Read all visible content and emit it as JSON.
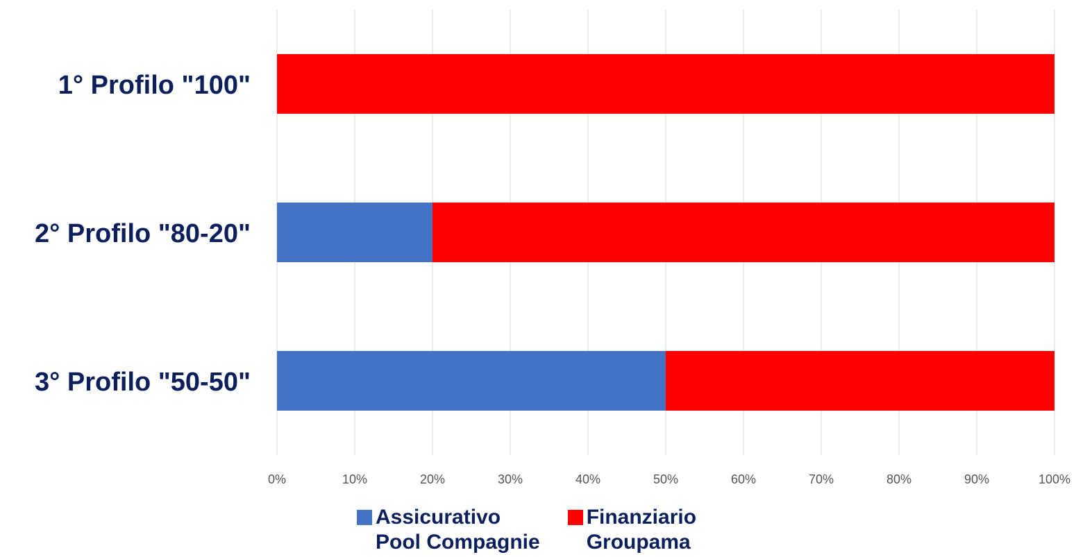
{
  "chart_data": {
    "type": "bar",
    "orientation": "horizontal",
    "stacked": true,
    "categories": [
      "1° Profilo \"100\"",
      "2° Profilo \"80-20\"",
      "3° Profilo \"50-50\""
    ],
    "series": [
      {
        "name": "Assicurativo Pool Compagnie",
        "name_lines": [
          "Assicurativo",
          "Pool Compagnie"
        ],
        "color": "#4472c4",
        "values": [
          0,
          20,
          50
        ]
      },
      {
        "name": "Finanziario Groupama",
        "name_lines": [
          "Finanziario",
          "Groupama"
        ],
        "color": "#ff0000",
        "values": [
          100,
          80,
          50
        ]
      }
    ],
    "xlim": [
      0,
      100
    ],
    "x_ticks": [
      "0%",
      "10%",
      "20%",
      "30%",
      "40%",
      "50%",
      "60%",
      "70%",
      "80%",
      "90%",
      "100%"
    ],
    "grid": true,
    "legend_position": "bottom"
  }
}
